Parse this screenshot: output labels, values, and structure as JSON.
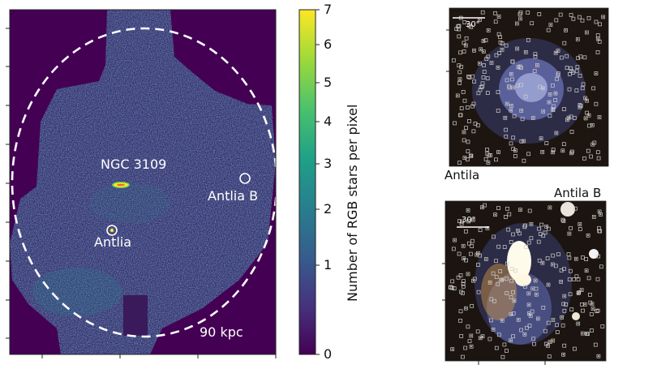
{
  "main_map": {
    "labels": {
      "ngc3109": "NGC 3109",
      "antlia": "Antlia",
      "antlia_b": "Antlia B",
      "radius": "90 kpc"
    },
    "colors": {
      "background": "#440154",
      "survey_base": "#3b2a6e",
      "galaxy_core": "#fde725",
      "circle": "#ffffff"
    }
  },
  "colorbar": {
    "label": "Number of RGB stars per pixel",
    "ticks": [
      "0",
      "1",
      "2",
      "3",
      "4",
      "5",
      "6",
      "7"
    ],
    "colormap": "viridis"
  },
  "panels": [
    {
      "id": "antila",
      "caption": "Antila",
      "scale_label": "30\""
    },
    {
      "id": "antila-b",
      "caption": "Antila B",
      "scale_label": "30\""
    }
  ]
}
